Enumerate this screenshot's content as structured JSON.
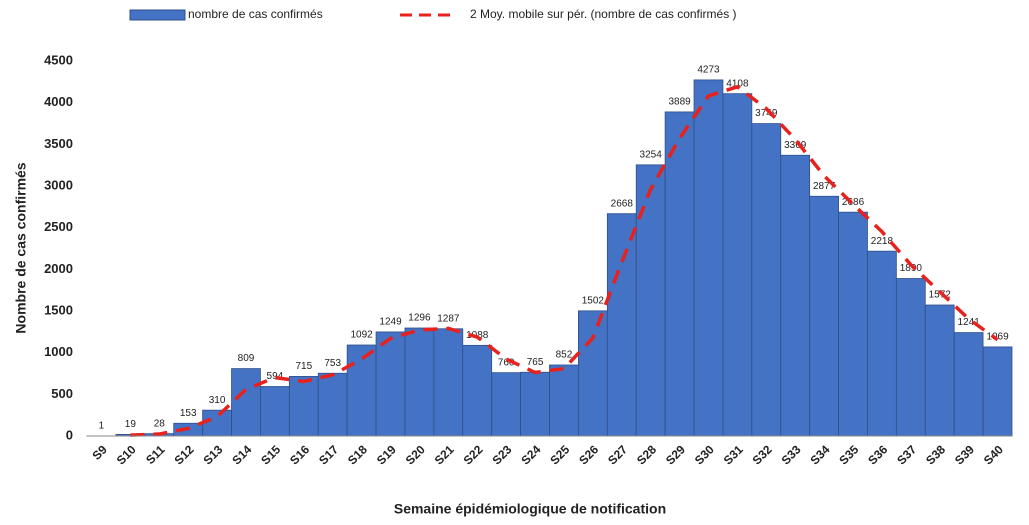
{
  "chart_data": {
    "type": "bar",
    "x_label": "Semaine épidémiologique de notification",
    "y_label": "Nombre de cas confirmés",
    "categories": [
      "S9",
      "S10",
      "S11",
      "S12",
      "S13",
      "S14",
      "S15",
      "S16",
      "S17",
      "S18",
      "S19",
      "S20",
      "S21",
      "S22",
      "S23",
      "S24",
      "S25",
      "S26",
      "S27",
      "S28",
      "S29",
      "S30",
      "S31",
      "S32",
      "S33",
      "S34",
      "S35",
      "S36",
      "S37",
      "S38",
      "S39",
      "S40"
    ],
    "series": [
      {
        "name": "nombre de cas confirmés",
        "type": "bar",
        "color": "#4472c4",
        "values": [
          1,
          19,
          28,
          153,
          310,
          809,
          594,
          715,
          753,
          1092,
          1249,
          1296,
          1287,
          1088,
          760,
          765,
          852,
          1502,
          2668,
          3254,
          3889,
          4273,
          4108,
          3749,
          3369,
          2877,
          2686,
          2218,
          1890,
          1572,
          1241,
          1069
        ]
      },
      {
        "name": "2 Moy. mobile sur pér. (nombre de cas confirmés )",
        "type": "line",
        "color": "#e8211d",
        "dashed": true,
        "values": [
          null,
          10,
          23.5,
          90.5,
          231.5,
          559.5,
          701.5,
          654.5,
          734,
          922.5,
          1170.5,
          1272.5,
          1291.5,
          1187.5,
          924,
          762.5,
          808.5,
          1177,
          2085,
          2961,
          3571.5,
          4081,
          4190.5,
          3928.5,
          3559,
          3123,
          2781.5,
          2452,
          2054,
          1731,
          1406.5,
          1155
        ]
      }
    ],
    "ylim": [
      0,
      4500
    ],
    "yticks": [
      0,
      500,
      1000,
      1500,
      2000,
      2500,
      3000,
      3500,
      4000,
      4500
    ],
    "grid": false
  }
}
